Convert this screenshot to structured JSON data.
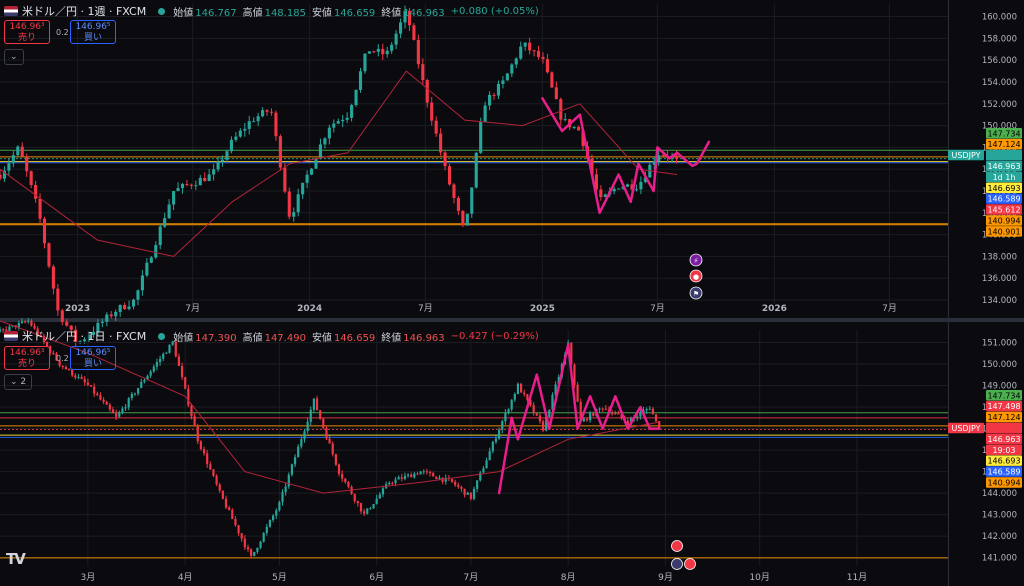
{
  "top": {
    "title": "米ドル／円 · 1週 · FXCM",
    "ohlc": [
      {
        "label": "始値",
        "value": "146.767",
        "dir": "up"
      },
      {
        "label": "高値",
        "value": "148.185",
        "dir": "up"
      },
      {
        "label": "安値",
        "value": "146.659",
        "dir": "up"
      },
      {
        "label": "終値",
        "value": "146.963",
        "dir": "up"
      }
    ],
    "change": "+0.080 (+0.05%)",
    "change_dir": "up",
    "sell_price": "146.96³",
    "sell_label": "売り",
    "buy_price": "146.96⁵",
    "buy_label": "買い",
    "spread": "0.2",
    "collapse_label": "⌄",
    "y_ticks": [
      "160.000",
      "158.000",
      "156.000",
      "154.000",
      "152.000",
      "150.000",
      "148.000",
      "146.000",
      "144.000",
      "142.000",
      "140.000",
      "138.000",
      "136.000",
      "134.000"
    ],
    "x_ticks": [
      "2023",
      "7月",
      "2024",
      "7月",
      "2025",
      "7月",
      "2026",
      "7月"
    ],
    "price_tags": [
      {
        "text": "147.734",
        "bg": "#4caf50",
        "fg": "#000000"
      },
      {
        "text": "147.124",
        "bg": "#ff9800",
        "fg": "#000000"
      },
      {
        "text": "USDJPY",
        "bg": "#26a69a",
        "fg": "#ffffff"
      },
      {
        "text": "146.963",
        "bg": "#26a69a",
        "fg": "#ffffff"
      },
      {
        "text": "1d 1h",
        "bg": "#26a69a",
        "fg": "#ffffff"
      },
      {
        "text": "146.693",
        "bg": "#ffeb3b",
        "fg": "#000000"
      },
      {
        "text": "146.589",
        "bg": "#2962ff",
        "fg": "#ffffff"
      },
      {
        "text": "145.612",
        "bg": "#f23645",
        "fg": "#ffffff"
      },
      {
        "text": "140.994",
        "bg": "#ff9800",
        "fg": "#000000"
      },
      {
        "text": "140.901",
        "bg": "#ff9800",
        "fg": "#000000"
      }
    ]
  },
  "bottom": {
    "title": "米ドル／円 · 1日 · FXCM",
    "ohlc": [
      {
        "label": "始値",
        "value": "147.390",
        "dir": "down"
      },
      {
        "label": "高値",
        "value": "147.490",
        "dir": "down"
      },
      {
        "label": "安値",
        "value": "146.659",
        "dir": "down"
      },
      {
        "label": "終値",
        "value": "146.963",
        "dir": "down"
      }
    ],
    "change": "−0.427 (−0.29%)",
    "change_dir": "down",
    "sell_price": "146.96³",
    "sell_label": "売り",
    "buy_price": "146.96⁵",
    "buy_label": "買い",
    "spread": "0.2",
    "collapse_label": "⌄ 2",
    "y_ticks": [
      "151.000",
      "150.000",
      "149.000",
      "148.000",
      "147.000",
      "146.000",
      "145.000",
      "144.000",
      "143.000",
      "142.000",
      "141.000"
    ],
    "x_ticks": [
      "3月",
      "4月",
      "5月",
      "6月",
      "7月",
      "8月",
      "9月",
      "10月",
      "11月"
    ],
    "price_tags": [
      {
        "text": "147.734",
        "bg": "#4caf50",
        "fg": "#000000"
      },
      {
        "text": "147.498",
        "bg": "#f23645",
        "fg": "#ffffff"
      },
      {
        "text": "147.124",
        "bg": "#ff9800",
        "fg": "#000000"
      },
      {
        "text": "USDJPY",
        "bg": "#f23645",
        "fg": "#ffffff"
      },
      {
        "text": "146.963",
        "bg": "#f23645",
        "fg": "#ffffff"
      },
      {
        "text": "19:03",
        "bg": "#f23645",
        "fg": "#ffffff"
      },
      {
        "text": "146.693",
        "bg": "#ffeb3b",
        "fg": "#000000"
      },
      {
        "text": "146.589",
        "bg": "#2962ff",
        "fg": "#ffffff"
      },
      {
        "text": "140.994",
        "bg": "#ff9800",
        "fg": "#000000"
      }
    ]
  },
  "colors": {
    "up": "#26a69a",
    "down": "#f23645",
    "ma": "#b2233a",
    "drawing": "#e91e8c",
    "hline_green": "#4caf50",
    "hline_orange": "#ff9800",
    "hline_yellow": "#ffeb3b",
    "hline_blue": "#2962ff",
    "hline_red": "#f23645",
    "grid": "#1a1c22"
  },
  "icons": [
    "flash-icon",
    "event-icon",
    "us-flag-icon"
  ],
  "logo_text": "TV",
  "chart_data": [
    {
      "type": "candlestick",
      "name_printed": "米ドル／円 · 1週 · FXCM",
      "timeframe": "1週",
      "ylim": [
        134,
        160.6
      ],
      "x_range": [
        "2022-09",
        "2026-10"
      ],
      "x_ticks": [
        "2023",
        "7月",
        "2024",
        "7月",
        "2025",
        "7月",
        "2026",
        "7月"
      ],
      "last": {
        "open": 146.767,
        "high": 148.185,
        "low": 146.659,
        "close": 146.963
      },
      "horizontal_levels": [
        147.734,
        147.124,
        146.963,
        146.693,
        146.589,
        140.994,
        140.901
      ],
      "close_path": [
        {
          "x": "2022-09",
          "y": 145.5
        },
        {
          "x": "2022-10",
          "y": 148.0
        },
        {
          "x": "2022-11",
          "y": 142.0
        },
        {
          "x": "2022-12",
          "y": 133.0
        },
        {
          "x": "2023-01",
          "y": 130.0
        },
        {
          "x": "2023-03",
          "y": 133.0
        },
        {
          "x": "2023-04",
          "y": 134.0
        },
        {
          "x": "2023-06",
          "y": 144.0
        },
        {
          "x": "2023-08",
          "y": 145.5
        },
        {
          "x": "2023-09",
          "y": 148.5
        },
        {
          "x": "2023-10",
          "y": 150.5
        },
        {
          "x": "2023-11",
          "y": 151.5
        },
        {
          "x": "2023-12",
          "y": 141.5
        },
        {
          "x": "2024-01",
          "y": 146.0
        },
        {
          "x": "2024-02",
          "y": 150.0
        },
        {
          "x": "2024-03",
          "y": 151.0
        },
        {
          "x": "2024-04",
          "y": 157.0
        },
        {
          "x": "2024-05",
          "y": 156.5
        },
        {
          "x": "2024-06",
          "y": 160.5
        },
        {
          "x": "2024-07",
          "y": 153.0
        },
        {
          "x": "2024-08",
          "y": 146.0
        },
        {
          "x": "2024-09",
          "y": 140.0
        },
        {
          "x": "2024-10",
          "y": 152.0
        },
        {
          "x": "2024-11",
          "y": 154.0
        },
        {
          "x": "2024-12",
          "y": 157.5
        },
        {
          "x": "2025-01",
          "y": 156.0
        },
        {
          "x": "2025-02",
          "y": 150.5
        },
        {
          "x": "2025-03",
          "y": 149.5
        },
        {
          "x": "2025-04",
          "y": 143.0
        },
        {
          "x": "2025-05",
          "y": 144.5
        },
        {
          "x": "2025-06",
          "y": 144.5
        },
        {
          "x": "2025-07",
          "y": 147.5
        },
        {
          "x": "2025-08",
          "y": 146.963
        }
      ],
      "moving_average": [
        {
          "x": "2022-09",
          "y": 146.0
        },
        {
          "x": "2023-02",
          "y": 139.5
        },
        {
          "x": "2023-06",
          "y": 138.0
        },
        {
          "x": "2023-09",
          "y": 143.0
        },
        {
          "x": "2023-12",
          "y": 146.5
        },
        {
          "x": "2024-03",
          "y": 147.5
        },
        {
          "x": "2024-06",
          "y": 155.0
        },
        {
          "x": "2024-09",
          "y": 150.5
        },
        {
          "x": "2024-12",
          "y": 150.0
        },
        {
          "x": "2025-03",
          "y": 152.0
        },
        {
          "x": "2025-06",
          "y": 146.0
        },
        {
          "x": "2025-08",
          "y": 145.5
        }
      ],
      "drawing_path": [
        {
          "x": "2025-01",
          "y": 152.5
        },
        {
          "x": "2025-02",
          "y": 149.5
        },
        {
          "x": "2025-03",
          "y": 151.0
        },
        {
          "x": "2025-04",
          "y": 142.0
        },
        {
          "x": "2025-05",
          "y": 145.5
        },
        {
          "x": "2025-05-20",
          "y": 143.0
        },
        {
          "x": "2025-06",
          "y": 146.5
        },
        {
          "x": "2025-06-25",
          "y": 144.0
        },
        {
          "x": "2025-07",
          "y": 148.0
        },
        {
          "x": "2025-07-20",
          "y": 147.0
        },
        {
          "x": "2025-08",
          "y": 147.5
        },
        {
          "x": "2025-08-25",
          "y": 146.3
        },
        {
          "x": "2025-09",
          "y": 146.5
        },
        {
          "x": "2025-09-20",
          "y": 148.5
        }
      ]
    },
    {
      "type": "candlestick",
      "name_printed": "米ドル／円 · 1日 · FXCM",
      "timeframe": "1日",
      "ylim": [
        140.8,
        151.3
      ],
      "x_range": [
        "2025-02-01",
        "2025-11-30"
      ],
      "x_ticks": [
        "3月",
        "4月",
        "5月",
        "6月",
        "7月",
        "8月",
        "9月",
        "10月",
        "11月"
      ],
      "last": {
        "open": 147.39,
        "high": 147.49,
        "low": 146.659,
        "close": 146.963
      },
      "horizontal_levels": [
        147.734,
        147.498,
        147.124,
        146.963,
        146.693,
        146.589,
        140.994
      ],
      "close_path": [
        {
          "x": "2025-02-01",
          "y": 151.5
        },
        {
          "x": "2025-02-10",
          "y": 152.0
        },
        {
          "x": "2025-02-20",
          "y": 150.0
        },
        {
          "x": "2025-03-01",
          "y": 149.0
        },
        {
          "x": "2025-03-10",
          "y": 147.5
        },
        {
          "x": "2025-03-20",
          "y": 149.5
        },
        {
          "x": "2025-03-28",
          "y": 151.0
        },
        {
          "x": "2025-04-05",
          "y": 146.5
        },
        {
          "x": "2025-04-12",
          "y": 144.0
        },
        {
          "x": "2025-04-22",
          "y": 141.0
        },
        {
          "x": "2025-05-01",
          "y": 143.5
        },
        {
          "x": "2025-05-12",
          "y": 148.3
        },
        {
          "x": "2025-05-20",
          "y": 145.0
        },
        {
          "x": "2025-05-28",
          "y": 143.0
        },
        {
          "x": "2025-06-05",
          "y": 144.5
        },
        {
          "x": "2025-06-15",
          "y": 145.0
        },
        {
          "x": "2025-06-25",
          "y": 144.5
        },
        {
          "x": "2025-07-01",
          "y": 143.8
        },
        {
          "x": "2025-07-10",
          "y": 147.0
        },
        {
          "x": "2025-07-16",
          "y": 149.0
        },
        {
          "x": "2025-07-24",
          "y": 147.0
        },
        {
          "x": "2025-08-01",
          "y": 150.9
        },
        {
          "x": "2025-08-05",
          "y": 147.3
        },
        {
          "x": "2025-08-12",
          "y": 148.0
        },
        {
          "x": "2025-08-20",
          "y": 147.3
        },
        {
          "x": "2025-08-27",
          "y": 148.0
        },
        {
          "x": "2025-08-30",
          "y": 146.963
        }
      ],
      "moving_average": [
        {
          "x": "2025-02-01",
          "y": 152.0
        },
        {
          "x": "2025-03-01",
          "y": 150.5
        },
        {
          "x": "2025-04-01",
          "y": 148.5
        },
        {
          "x": "2025-04-20",
          "y": 145.0
        },
        {
          "x": "2025-05-15",
          "y": 144.0
        },
        {
          "x": "2025-06-15",
          "y": 144.5
        },
        {
          "x": "2025-07-10",
          "y": 145.0
        },
        {
          "x": "2025-08-01",
          "y": 146.5
        },
        {
          "x": "2025-08-30",
          "y": 147.3
        }
      ],
      "drawing_path": [
        {
          "x": "2025-07-10",
          "y": 144.0
        },
        {
          "x": "2025-07-14",
          "y": 147.5
        },
        {
          "x": "2025-07-16",
          "y": 146.5
        },
        {
          "x": "2025-07-22",
          "y": 149.5
        },
        {
          "x": "2025-07-26",
          "y": 147.0
        },
        {
          "x": "2025-08-01",
          "y": 150.9
        },
        {
          "x": "2025-08-04",
          "y": 147.0
        },
        {
          "x": "2025-08-08",
          "y": 148.5
        },
        {
          "x": "2025-08-12",
          "y": 147.0
        },
        {
          "x": "2025-08-16",
          "y": 148.5
        },
        {
          "x": "2025-08-20",
          "y": 147.0
        },
        {
          "x": "2025-08-24",
          "y": 148.0
        },
        {
          "x": "2025-08-27",
          "y": 147.0
        },
        {
          "x": "2025-08-30",
          "y": 147.0
        }
      ]
    }
  ]
}
